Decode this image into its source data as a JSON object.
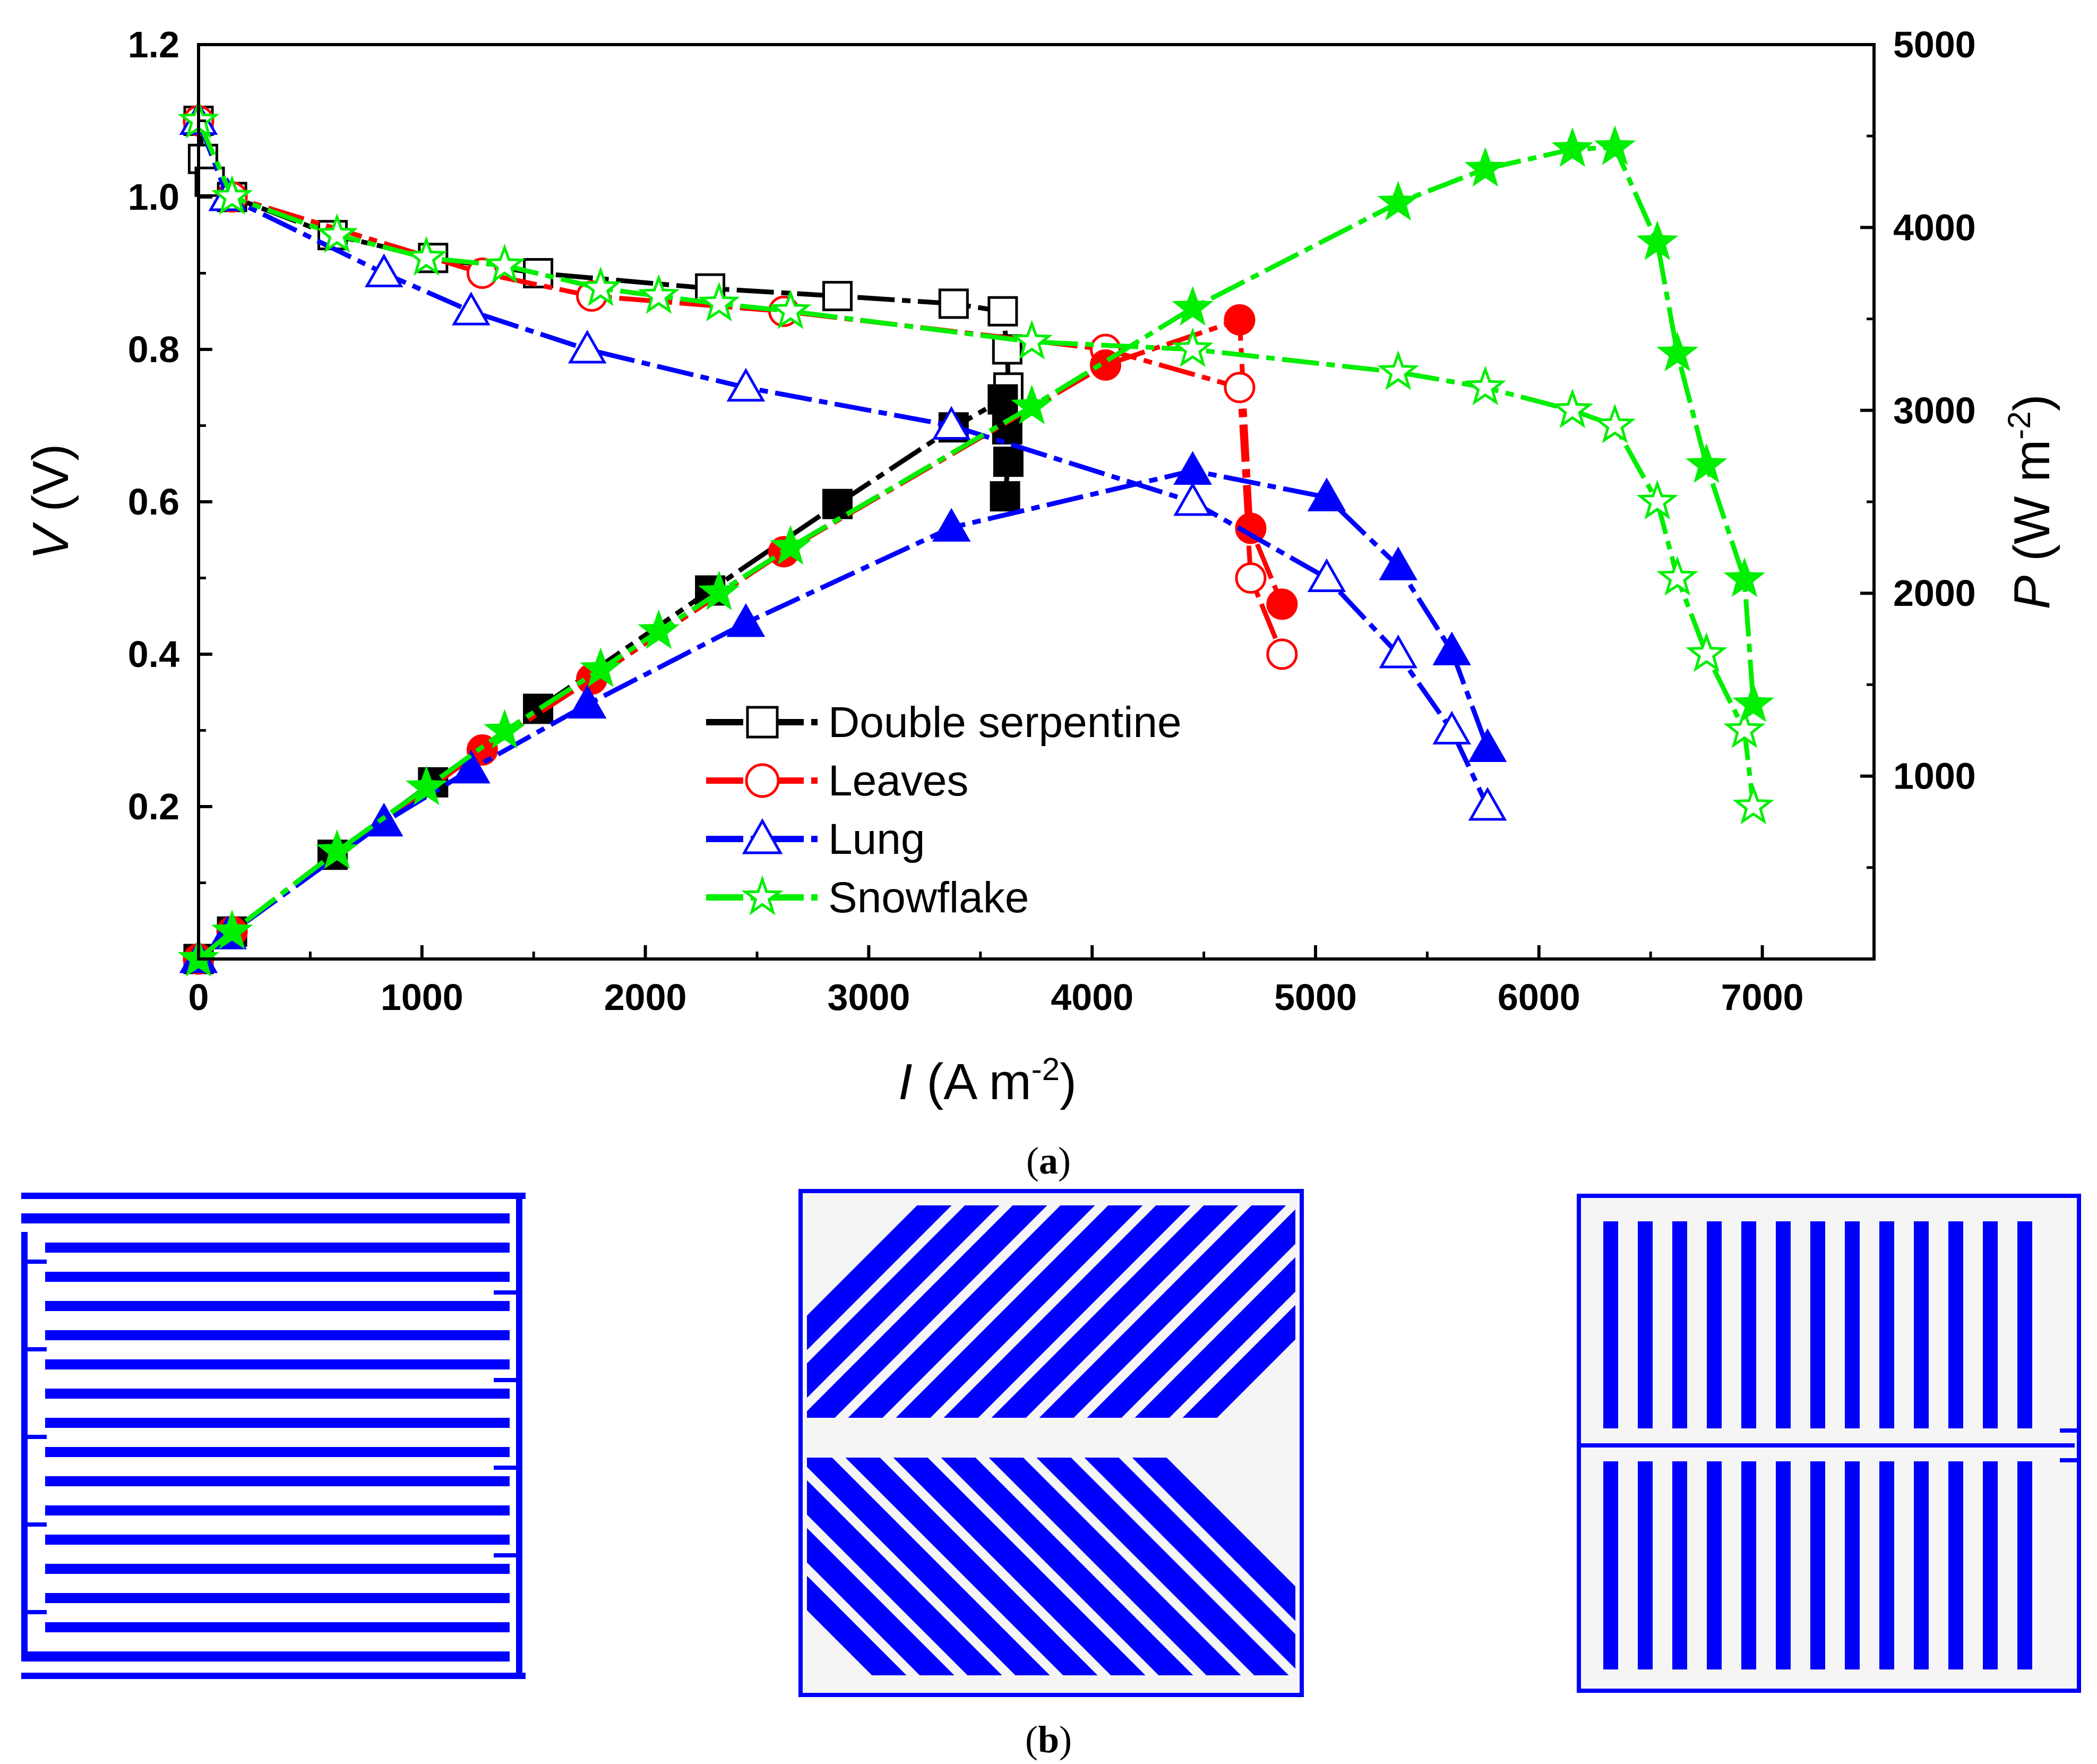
{
  "chart_data": {
    "type": "line",
    "x": {
      "label_var": "I",
      "label_unit": "(A m",
      "label_exp": "-2",
      "label_close": ")",
      "range": [
        0,
        7500
      ],
      "ticks": [
        0,
        1000,
        2000,
        3000,
        4000,
        5000,
        6000,
        7000
      ]
    },
    "y_left": {
      "label_var": "V",
      "label_unit": "(V)",
      "range": [
        0,
        1.2
      ],
      "ticks": [
        0.2,
        0.4,
        0.6,
        0.8,
        1.0,
        1.2
      ],
      "tick_labels": [
        "0.2",
        "0.4",
        "0.6",
        "0.8",
        "1.0",
        "1.2"
      ]
    },
    "y_right": {
      "label_var": "P",
      "label_unit": "(W m",
      "label_exp": "-2",
      "label_close": ")",
      "range": [
        0,
        5000
      ],
      "ticks": [
        1000,
        2000,
        3000,
        4000,
        5000
      ]
    },
    "series": [
      {
        "name": "Double serpentine",
        "color": "#000000",
        "marker": "square",
        "dash": "dash-dot",
        "voltage": [
          [
            0,
            1.1
          ],
          [
            20,
            1.05
          ],
          [
            50,
            1.02
          ],
          [
            150,
            1.0
          ],
          [
            600,
            0.95
          ],
          [
            1050,
            0.92
          ],
          [
            1520,
            0.9
          ],
          [
            2290,
            0.88
          ],
          [
            2860,
            0.87
          ],
          [
            3380,
            0.86
          ],
          [
            3600,
            0.85
          ],
          [
            3620,
            0.8
          ],
          [
            3625,
            0.75
          ]
        ],
        "power": [
          [
            0,
            0
          ],
          [
            150,
            150
          ],
          [
            600,
            570
          ],
          [
            1050,
            966
          ],
          [
            1520,
            1368
          ],
          [
            2290,
            2015
          ],
          [
            2860,
            2488
          ],
          [
            3380,
            2907
          ],
          [
            3600,
            3060
          ],
          [
            3620,
            2896
          ],
          [
            3625,
            2719
          ],
          [
            3610,
            2530
          ]
        ]
      },
      {
        "name": "Leaves",
        "color": "#ff0000",
        "marker": "circle",
        "dash": "dash-dot",
        "voltage": [
          [
            0,
            1.1
          ],
          [
            150,
            1.0
          ],
          [
            1270,
            0.9
          ],
          [
            1760,
            0.87
          ],
          [
            2620,
            0.85
          ],
          [
            4060,
            0.8
          ],
          [
            4660,
            0.75
          ],
          [
            4710,
            0.5
          ],
          [
            4850,
            0.4
          ]
        ],
        "power": [
          [
            0,
            0
          ],
          [
            150,
            150
          ],
          [
            1270,
            1143
          ],
          [
            1760,
            1531
          ],
          [
            2620,
            2227
          ],
          [
            4060,
            3248
          ],
          [
            4660,
            3495
          ],
          [
            4710,
            2355
          ],
          [
            4850,
            1940
          ]
        ]
      },
      {
        "name": "Lung",
        "color": "#0000ff",
        "marker": "triangle",
        "dash": "dash-dot",
        "voltage": [
          [
            0,
            1.1
          ],
          [
            130,
            1.0
          ],
          [
            830,
            0.9
          ],
          [
            1220,
            0.85
          ],
          [
            1740,
            0.8
          ],
          [
            2450,
            0.75
          ],
          [
            3370,
            0.7
          ],
          [
            4450,
            0.6
          ],
          [
            5050,
            0.5
          ],
          [
            5370,
            0.4
          ],
          [
            5610,
            0.3
          ],
          [
            5770,
            0.2
          ]
        ],
        "power": [
          [
            0,
            0
          ],
          [
            130,
            130
          ],
          [
            830,
            747
          ],
          [
            1220,
            1037
          ],
          [
            1740,
            1392
          ],
          [
            2450,
            1838
          ],
          [
            3370,
            2359
          ],
          [
            4450,
            2670
          ],
          [
            5050,
            2525
          ],
          [
            5370,
            2148
          ],
          [
            5610,
            1683
          ],
          [
            5770,
            1154
          ]
        ]
      },
      {
        "name": "Snowflake",
        "color": "#00ee00",
        "marker": "star",
        "dash": "dash-dot",
        "voltage": [
          [
            0,
            1.1
          ],
          [
            150,
            1.0
          ],
          [
            620,
            0.95
          ],
          [
            1020,
            0.92
          ],
          [
            1370,
            0.91
          ],
          [
            1800,
            0.88
          ],
          [
            2060,
            0.87
          ],
          [
            2330,
            0.86
          ],
          [
            2650,
            0.85
          ],
          [
            3730,
            0.81
          ],
          [
            4450,
            0.8
          ],
          [
            5370,
            0.77
          ],
          [
            5760,
            0.75
          ],
          [
            6150,
            0.72
          ],
          [
            6340,
            0.7
          ],
          [
            6530,
            0.6
          ],
          [
            6620,
            0.5
          ],
          [
            6750,
            0.4
          ],
          [
            6920,
            0.3
          ],
          [
            6960,
            0.2
          ]
        ],
        "power": [
          [
            0,
            0
          ],
          [
            150,
            150
          ],
          [
            620,
            589
          ],
          [
            1020,
            938
          ],
          [
            1370,
            1247
          ],
          [
            1800,
            1584
          ],
          [
            2060,
            1792
          ],
          [
            2330,
            2004
          ],
          [
            2650,
            2253
          ],
          [
            3730,
            3021
          ],
          [
            4450,
            3560
          ],
          [
            5370,
            4135
          ],
          [
            5760,
            4320
          ],
          [
            6150,
            4428
          ],
          [
            6340,
            4438
          ],
          [
            6530,
            3918
          ],
          [
            6620,
            3310
          ],
          [
            6750,
            2700
          ],
          [
            6920,
            2076
          ],
          [
            6960,
            1392
          ]
        ]
      }
    ]
  },
  "captions": {
    "a": "a",
    "b": "b"
  },
  "channel_colors": {
    "stripe": "#0000ff",
    "background": "#f5f5f5"
  }
}
